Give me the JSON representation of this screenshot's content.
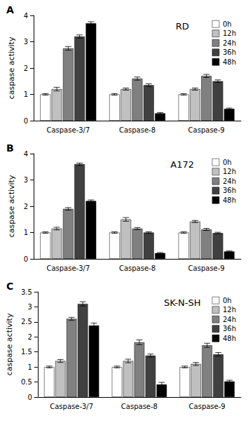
{
  "chart_data": [
    {
      "type": "bar",
      "title": "RD",
      "annotations": [
        "A"
      ],
      "ylabel": "caspase activity",
      "categories": [
        "Caspase-3/7",
        "Caspase-8",
        "Caspase-9"
      ],
      "series": [
        {
          "name": "0h",
          "color": "#ffffff",
          "values": [
            1.0,
            1.0,
            1.0
          ],
          "errors": [
            0.03,
            0.03,
            0.03
          ]
        },
        {
          "name": "12h",
          "color": "#c0c0c0",
          "values": [
            1.2,
            1.2,
            1.2
          ],
          "errors": [
            0.07,
            0.04,
            0.04
          ]
        },
        {
          "name": "24h",
          "color": "#808080",
          "values": [
            2.75,
            1.6,
            1.7
          ],
          "errors": [
            0.07,
            0.06,
            0.06
          ]
        },
        {
          "name": "36h",
          "color": "#404040",
          "values": [
            3.2,
            1.35,
            1.5
          ],
          "errors": [
            0.06,
            0.05,
            0.05
          ]
        },
        {
          "name": "48h",
          "color": "#000000",
          "values": [
            3.7,
            0.28,
            0.45
          ],
          "errors": [
            0.06,
            0.03,
            0.03
          ]
        }
      ],
      "ylim": [
        0,
        4
      ],
      "yticks": [
        0,
        1,
        2,
        3,
        4
      ],
      "grid": false,
      "legend": "upper right"
    },
    {
      "type": "bar",
      "title": "A172",
      "annotations": [
        "B"
      ],
      "ylabel": "caspase activity",
      "categories": [
        "Caspase-3/7",
        "Caspase-8",
        "Caspase-9"
      ],
      "series": [
        {
          "name": "0h",
          "color": "#ffffff",
          "values": [
            1.0,
            1.0,
            1.0
          ],
          "errors": [
            0.03,
            0.03,
            0.03
          ]
        },
        {
          "name": "12h",
          "color": "#c0c0c0",
          "values": [
            1.15,
            1.5,
            1.42
          ],
          "errors": [
            0.05,
            0.07,
            0.04
          ]
        },
        {
          "name": "24h",
          "color": "#808080",
          "values": [
            1.9,
            1.15,
            1.12
          ],
          "errors": [
            0.05,
            0.04,
            0.04
          ]
        },
        {
          "name": "36h",
          "color": "#404040",
          "values": [
            3.6,
            1.0,
            0.98
          ],
          "errors": [
            0.04,
            0.03,
            0.03
          ]
        },
        {
          "name": "48h",
          "color": "#000000",
          "values": [
            2.2,
            0.22,
            0.28
          ],
          "errors": [
            0.04,
            0.02,
            0.02
          ]
        }
      ],
      "ylim": [
        0,
        4
      ],
      "yticks": [
        0,
        1,
        2,
        3,
        4
      ],
      "grid": false,
      "legend": "upper right"
    },
    {
      "type": "bar",
      "title": "SK-N-SH",
      "annotations": [
        "C"
      ],
      "ylabel": "caspase activity",
      "categories": [
        "Caspase-3/7",
        "Caspase-8",
        "Caspase-9"
      ],
      "series": [
        {
          "name": "0h",
          "color": "#ffffff",
          "values": [
            1.0,
            1.0,
            1.0
          ],
          "errors": [
            0.03,
            0.03,
            0.03
          ]
        },
        {
          "name": "12h",
          "color": "#c0c0c0",
          "values": [
            1.2,
            1.2,
            1.1
          ],
          "errors": [
            0.05,
            0.06,
            0.05
          ]
        },
        {
          "name": "24h",
          "color": "#808080",
          "values": [
            2.6,
            1.82,
            1.72
          ],
          "errors": [
            0.05,
            0.08,
            0.07
          ]
        },
        {
          "name": "36h",
          "color": "#404040",
          "values": [
            3.1,
            1.38,
            1.42
          ],
          "errors": [
            0.07,
            0.05,
            0.06
          ]
        },
        {
          "name": "48h",
          "color": "#000000",
          "values": [
            2.38,
            0.42,
            0.52
          ],
          "errors": [
            0.08,
            0.07,
            0.04
          ]
        }
      ],
      "ylim": [
        0,
        3.5
      ],
      "yticks": [
        0,
        0.5,
        1,
        1.5,
        2,
        2.5,
        3,
        3.5
      ],
      "grid": false,
      "legend": "upper right"
    }
  ]
}
